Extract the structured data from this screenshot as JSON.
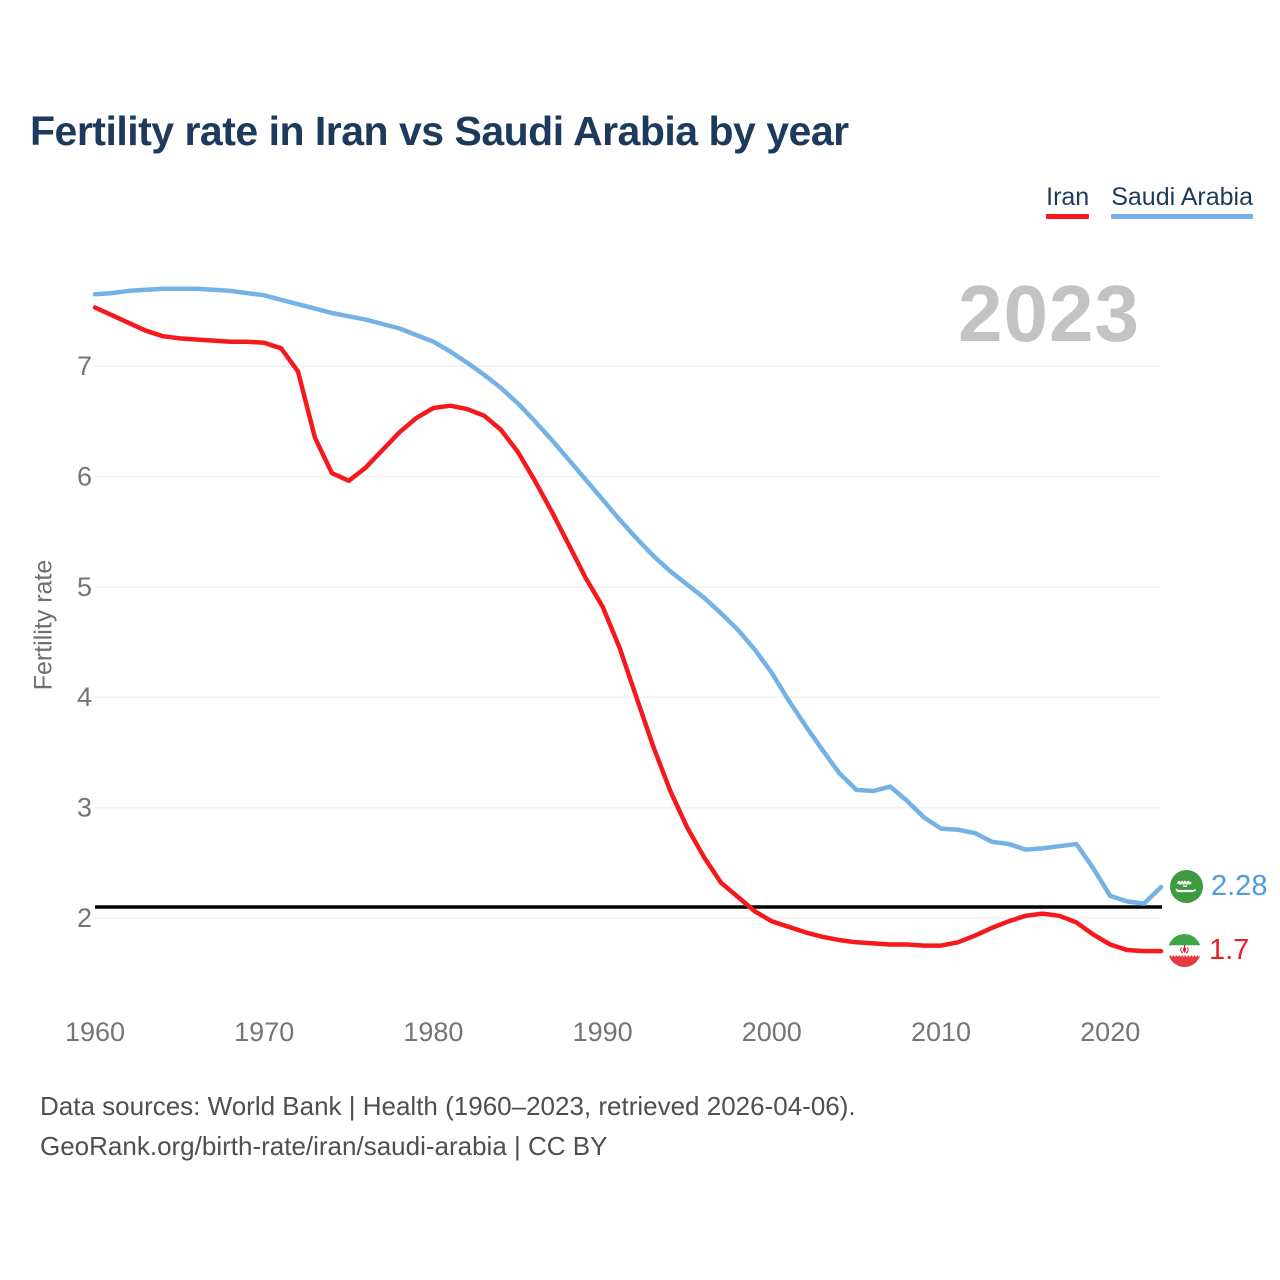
{
  "title": "Fertility rate in Iran vs Saudi Arabia by year",
  "watermark_year": "2023",
  "y_axis_label": "Fertility rate",
  "legend": [
    {
      "label": "Iran",
      "color": "#f5191d"
    },
    {
      "label": "Saudi Arabia",
      "color": "#74b2e6"
    }
  ],
  "end_labels": [
    {
      "series": "Saudi Arabia",
      "value": "2.28",
      "color": "#4e9ae1",
      "flag": "saudi-arabia-flag"
    },
    {
      "series": "Iran",
      "value": "1.7",
      "color": "#ee1d23",
      "flag": "iran-flag"
    }
  ],
  "footer": {
    "line1": "Data sources: World Bank | Health (1960–2023, retrieved 2026-04-06).",
    "line2": "GeoRank.org/birth-rate/iran/saudi-arabia | CC BY"
  },
  "chart_data": {
    "type": "line",
    "title": "Fertility rate in Iran vs Saudi Arabia by year",
    "xlabel": "",
    "ylabel": "Fertility rate",
    "x_ticks": [
      1960,
      1970,
      1980,
      1990,
      2000,
      2010,
      2020
    ],
    "y_ticks": [
      2,
      3,
      4,
      5,
      6,
      7
    ],
    "x_range": [
      1960,
      2023
    ],
    "ylim": [
      1.55,
      7.85
    ],
    "grid": "horizontal",
    "grid_color": "#efefef",
    "tick_color": "#757575",
    "legend_position": "top-right",
    "baseline": {
      "value": 2.1,
      "color": "#000000"
    },
    "x": [
      1960,
      1961,
      1962,
      1963,
      1964,
      1965,
      1966,
      1967,
      1968,
      1969,
      1970,
      1971,
      1972,
      1973,
      1974,
      1975,
      1976,
      1977,
      1978,
      1979,
      1980,
      1981,
      1982,
      1983,
      1984,
      1985,
      1986,
      1987,
      1988,
      1989,
      1990,
      1991,
      1992,
      1993,
      1994,
      1995,
      1996,
      1997,
      1998,
      1999,
      2000,
      2001,
      2002,
      2003,
      2004,
      2005,
      2006,
      2007,
      2008,
      2009,
      2010,
      2011,
      2012,
      2013,
      2014,
      2015,
      2016,
      2017,
      2018,
      2019,
      2020,
      2021,
      2022,
      2023
    ],
    "series": [
      {
        "name": "Saudi Arabia",
        "color": "#74b2e6",
        "final_value": 2.28,
        "values": [
          7.65,
          7.66,
          7.68,
          7.69,
          7.7,
          7.7,
          7.7,
          7.69,
          7.68,
          7.66,
          7.64,
          7.6,
          7.56,
          7.52,
          7.48,
          7.45,
          7.42,
          7.38,
          7.34,
          7.28,
          7.22,
          7.13,
          7.03,
          6.92,
          6.8,
          6.66,
          6.5,
          6.33,
          6.15,
          5.97,
          5.79,
          5.61,
          5.44,
          5.28,
          5.14,
          5.02,
          4.9,
          4.76,
          4.61,
          4.43,
          4.22,
          3.97,
          3.74,
          3.52,
          3.31,
          3.16,
          3.15,
          3.19,
          3.06,
          2.91,
          2.81,
          2.8,
          2.77,
          2.69,
          2.67,
          2.62,
          2.63,
          2.65,
          2.67,
          2.45,
          2.2,
          2.15,
          2.13,
          2.28
        ]
      },
      {
        "name": "Iran",
        "color": "#f5191d",
        "final_value": 1.7,
        "values": [
          7.53,
          7.46,
          7.39,
          7.32,
          7.27,
          7.25,
          7.24,
          7.23,
          7.22,
          7.22,
          7.21,
          7.16,
          6.95,
          6.35,
          6.03,
          5.96,
          6.08,
          6.24,
          6.4,
          6.53,
          6.62,
          6.64,
          6.61,
          6.55,
          6.42,
          6.22,
          5.96,
          5.68,
          5.38,
          5.08,
          4.82,
          4.45,
          4.0,
          3.55,
          3.15,
          2.82,
          2.55,
          2.32,
          2.19,
          2.06,
          1.97,
          1.92,
          1.87,
          1.83,
          1.8,
          1.78,
          1.77,
          1.76,
          1.76,
          1.75,
          1.75,
          1.78,
          1.84,
          1.91,
          1.97,
          2.02,
          2.04,
          2.02,
          1.96,
          1.85,
          1.76,
          1.71,
          1.7,
          1.7
        ]
      }
    ]
  }
}
